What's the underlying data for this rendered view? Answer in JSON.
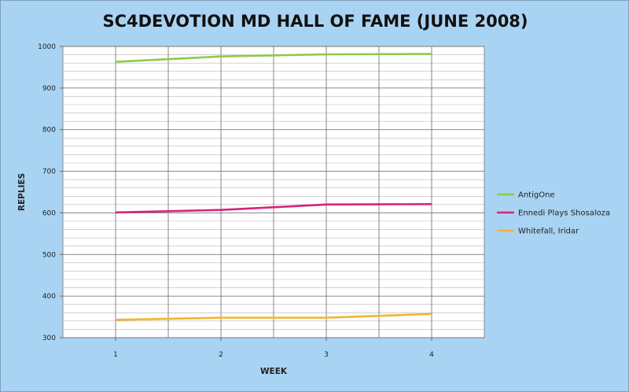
{
  "chart_data": {
    "type": "line",
    "title": "SC4DEVOTION MD HALL OF FAME (JUNE 2008)",
    "xlabel": "WEEK",
    "ylabel": "REPLIES",
    "categories": [
      "1",
      "2",
      "3",
      "4"
    ],
    "ylim": [
      300,
      1000
    ],
    "yticks": [
      300,
      400,
      500,
      600,
      700,
      800,
      900,
      1000
    ],
    "ygrid_minor_step": 20,
    "grid": true,
    "legend_position": "right",
    "series": [
      {
        "name": "AntigOne",
        "color": "#8ccc4c",
        "values": [
          963,
          976,
          981,
          982
        ]
      },
      {
        "name": "Ennedi Plays Shosaloza",
        "color": "#d6247a",
        "values": [
          601,
          607,
          620,
          621
        ]
      },
      {
        "name": "Whitefall, Iridar",
        "color": "#f2b52e",
        "values": [
          343,
          348,
          348,
          357
        ]
      }
    ]
  }
}
